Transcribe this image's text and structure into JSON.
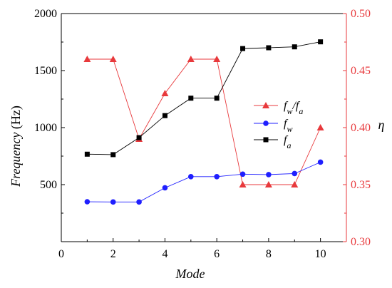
{
  "chart_data": {
    "type": "line",
    "xlabel": "Mode",
    "ylabel": "Frequency (Hz)",
    "ylabel_parts": [
      "Frequency",
      " (Hz)"
    ],
    "y2label": "η",
    "x": [
      1,
      2,
      3,
      4,
      5,
      6,
      7,
      8,
      9,
      10
    ],
    "xlim": [
      0,
      11
    ],
    "ylim": [
      0,
      2000
    ],
    "y2lim": [
      0.3,
      0.5
    ],
    "x_ticks": [
      "0",
      "2",
      "4",
      "6",
      "8",
      "10"
    ],
    "y_ticks": [
      "500",
      "1000",
      "1500",
      "2000"
    ],
    "y2_ticks": [
      "0.30",
      "0.35",
      "0.40",
      "0.45",
      "0.50"
    ],
    "grid": false,
    "legend_position": "center-right",
    "series": [
      {
        "name": "f_w/f_a",
        "legend": {
          "main": "f",
          "sub1": "w",
          "slash": "/",
          "main2": "f",
          "sub2": "a"
        },
        "axis": "right",
        "marker": "triangle",
        "color": "#e8393c",
        "values": [
          0.46,
          0.46,
          0.39,
          0.43,
          0.46,
          0.46,
          0.35,
          0.35,
          0.35,
          0.4
        ]
      },
      {
        "name": "f_w",
        "legend": {
          "main": "f",
          "sub1": "w"
        },
        "axis": "left",
        "marker": "circle",
        "color": "#1f1fff",
        "values": [
          350,
          348,
          348,
          472,
          570,
          570,
          592,
          588,
          597,
          697
        ]
      },
      {
        "name": "f_a",
        "legend": {
          "main": "f",
          "sub1": "a"
        },
        "axis": "left",
        "marker": "square",
        "color": "#000000",
        "values": [
          767,
          763,
          912,
          1105,
          1258,
          1258,
          1693,
          1700,
          1708,
          1752
        ]
      }
    ]
  }
}
